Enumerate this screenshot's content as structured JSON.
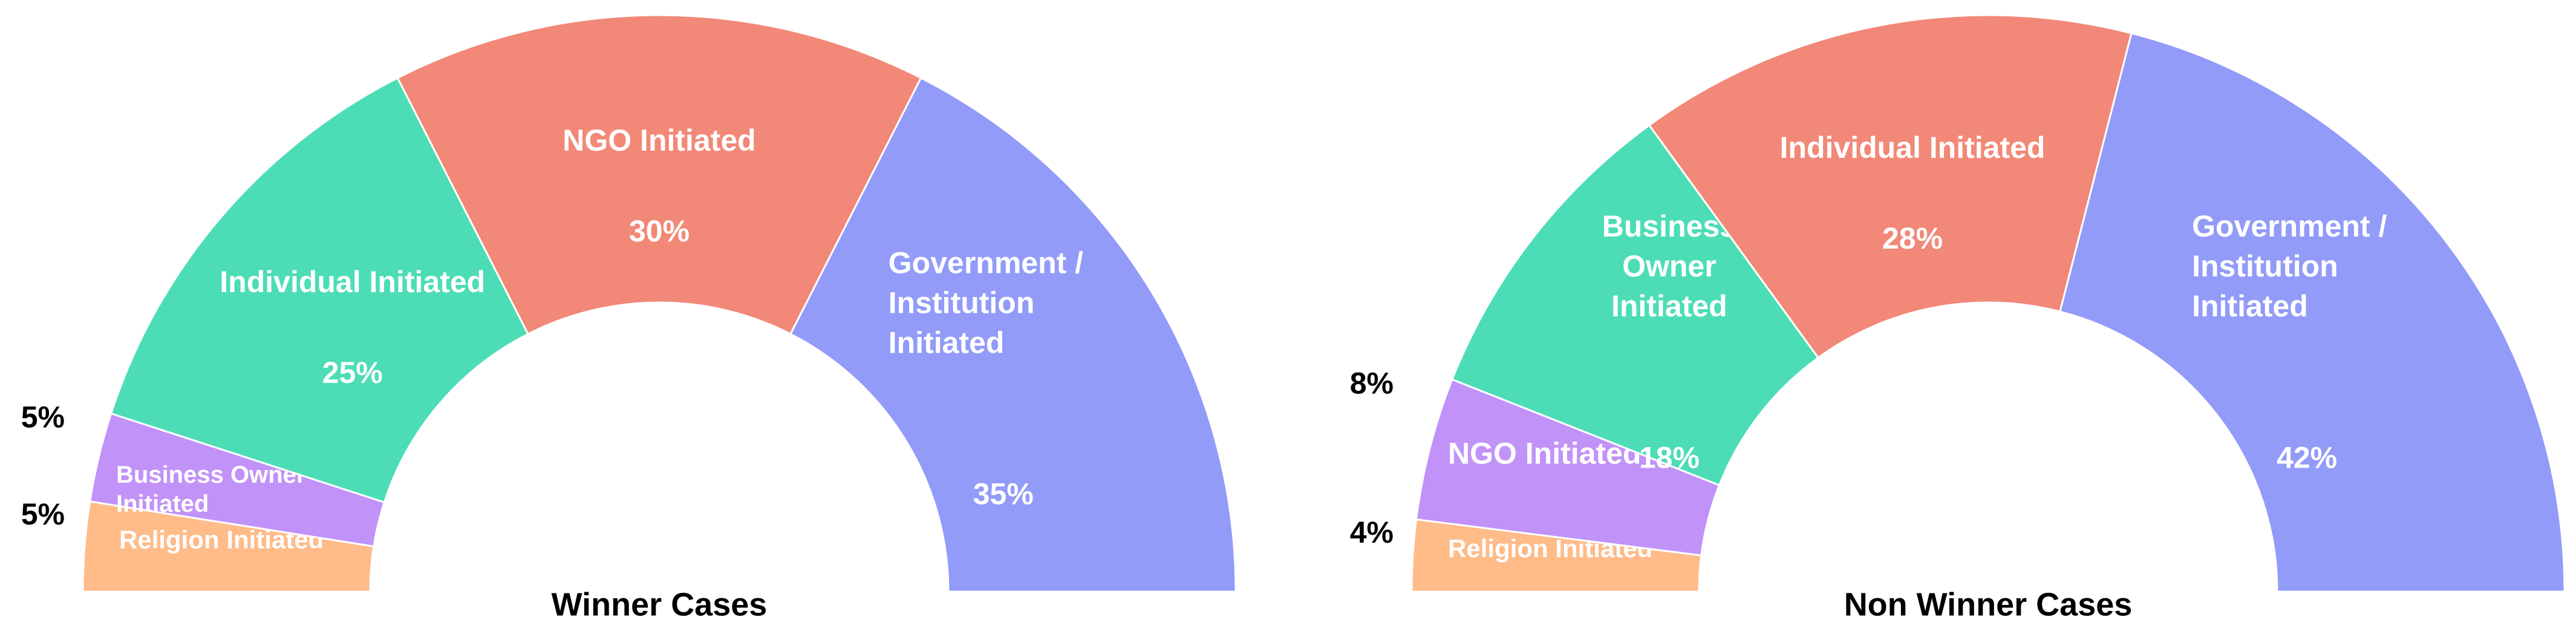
{
  "chart_data": [
    {
      "type": "half-donut",
      "title": "Winner Cases",
      "categories": [
        "Religion Initiated",
        "Business Owner\nInitiated",
        "Individual Initiated",
        "NGO Initiated",
        "Government /\nInstitution\nInitiated"
      ],
      "values": [
        5,
        5,
        25,
        30,
        35
      ],
      "value_labels": [
        "5%",
        "5%",
        "25%",
        "30%",
        "35%"
      ],
      "colors": [
        "#ffbb88",
        "#c192f8",
        "#4cddb6",
        "#f28877",
        "#929bf8"
      ]
    },
    {
      "type": "half-donut",
      "title": "Non Winner Cases",
      "categories": [
        "Religion Initiated",
        "NGO Initiated",
        "Business\nOwner\nInitiated",
        "Individual Initiated",
        "Government /\nInstitution\nInitiated"
      ],
      "values": [
        4,
        8,
        18,
        28,
        42
      ],
      "value_labels": [
        "4%",
        "8%",
        "18%",
        "28%",
        "42%"
      ],
      "colors": [
        "#ffbb88",
        "#c192f8",
        "#4cddb6",
        "#f28877",
        "#929bf8"
      ]
    }
  ]
}
